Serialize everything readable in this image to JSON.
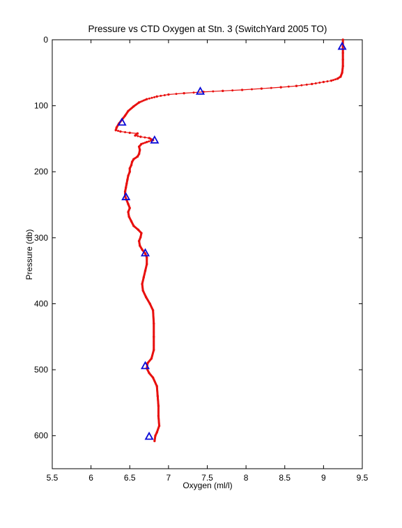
{
  "chart_data": {
    "type": "scatter",
    "title": "Pressure vs CTD Oxygen at Stn. 3 (SwitchYard 2005 TO)",
    "xlabel": "Oxygen (ml/l)",
    "ylabel": "Pressure (db)",
    "xlim": [
      5.5,
      9.5
    ],
    "ylim": [
      0,
      650
    ],
    "y_reversed": true,
    "xticks": [
      "5.5",
      "6",
      "6.5",
      "7",
      "7.5",
      "8",
      "8.5",
      "9",
      "9.5"
    ],
    "yticks": [
      "0",
      "100",
      "200",
      "300",
      "400",
      "500",
      "600"
    ],
    "grid": false,
    "colors": {
      "ctd": "#e8100f",
      "bottle": "#0a0ad8"
    },
    "series": [
      {
        "kind": "ctd-profile",
        "marker": "dot",
        "points": [
          [
            9.25,
            0
          ],
          [
            9.25,
            10
          ],
          [
            9.25,
            20
          ],
          [
            9.25,
            30
          ],
          [
            9.25,
            40
          ],
          [
            9.24,
            50
          ],
          [
            9.22,
            56
          ],
          [
            9.18,
            59
          ],
          [
            9.1,
            62
          ],
          [
            9.0,
            64
          ],
          [
            8.85,
            67
          ],
          [
            8.65,
            70
          ],
          [
            8.45,
            72
          ],
          [
            8.2,
            74
          ],
          [
            7.95,
            76
          ],
          [
            7.7,
            77.5
          ],
          [
            7.45,
            79
          ],
          [
            7.2,
            81
          ],
          [
            7.0,
            83
          ],
          [
            6.85,
            86
          ],
          [
            6.72,
            90
          ],
          [
            6.62,
            95
          ],
          [
            6.55,
            101
          ],
          [
            6.48,
            108
          ],
          [
            6.44,
            115
          ],
          [
            6.4,
            121
          ],
          [
            6.36,
            127
          ],
          [
            6.33,
            133
          ],
          [
            6.32,
            137
          ],
          [
            6.38,
            139
          ],
          [
            6.5,
            141
          ],
          [
            6.6,
            142
          ],
          [
            6.57,
            145
          ],
          [
            6.64,
            147
          ],
          [
            6.75,
            149
          ],
          [
            6.8,
            152
          ],
          [
            6.72,
            155
          ],
          [
            6.65,
            158
          ],
          [
            6.62,
            162
          ],
          [
            6.63,
            167
          ],
          [
            6.62,
            173
          ],
          [
            6.6,
            177
          ],
          [
            6.55,
            181
          ],
          [
            6.53,
            185
          ],
          [
            6.52,
            190
          ],
          [
            6.5,
            195
          ],
          [
            6.5,
            200
          ],
          [
            6.48,
            206
          ],
          [
            6.47,
            212
          ],
          [
            6.46,
            218
          ],
          [
            6.45,
            224
          ],
          [
            6.44,
            230
          ],
          [
            6.44,
            237
          ],
          [
            6.46,
            243
          ],
          [
            6.48,
            249
          ],
          [
            6.5,
            255
          ],
          [
            6.48,
            261
          ],
          [
            6.49,
            268
          ],
          [
            6.52,
            275
          ],
          [
            6.55,
            282
          ],
          [
            6.61,
            288
          ],
          [
            6.65,
            293
          ],
          [
            6.64,
            299
          ],
          [
            6.62,
            305
          ],
          [
            6.63,
            312
          ],
          [
            6.66,
            318
          ],
          [
            6.7,
            324
          ],
          [
            6.72,
            330
          ],
          [
            6.72,
            340
          ],
          [
            6.7,
            350
          ],
          [
            6.68,
            360
          ],
          [
            6.66,
            370
          ],
          [
            6.67,
            380
          ],
          [
            6.71,
            390
          ],
          [
            6.76,
            400
          ],
          [
            6.8,
            410
          ],
          [
            6.81,
            430
          ],
          [
            6.81,
            450
          ],
          [
            6.81,
            470
          ],
          [
            6.78,
            483
          ],
          [
            6.73,
            490
          ],
          [
            6.72,
            498
          ],
          [
            6.75,
            505
          ],
          [
            6.8,
            512
          ],
          [
            6.85,
            525
          ],
          [
            6.86,
            540
          ],
          [
            6.87,
            555
          ],
          [
            6.87,
            570
          ],
          [
            6.88,
            585
          ],
          [
            6.85,
            595
          ],
          [
            6.83,
            600
          ],
          [
            6.82,
            608
          ]
        ]
      },
      {
        "kind": "bottle-samples",
        "marker": "open-triangle",
        "points": [
          [
            9.24,
            10
          ],
          [
            7.41,
            78
          ],
          [
            6.4,
            125
          ],
          [
            6.82,
            152
          ],
          [
            6.45,
            238
          ],
          [
            6.7,
            323
          ],
          [
            6.7,
            494
          ],
          [
            6.75,
            601
          ]
        ]
      }
    ]
  }
}
